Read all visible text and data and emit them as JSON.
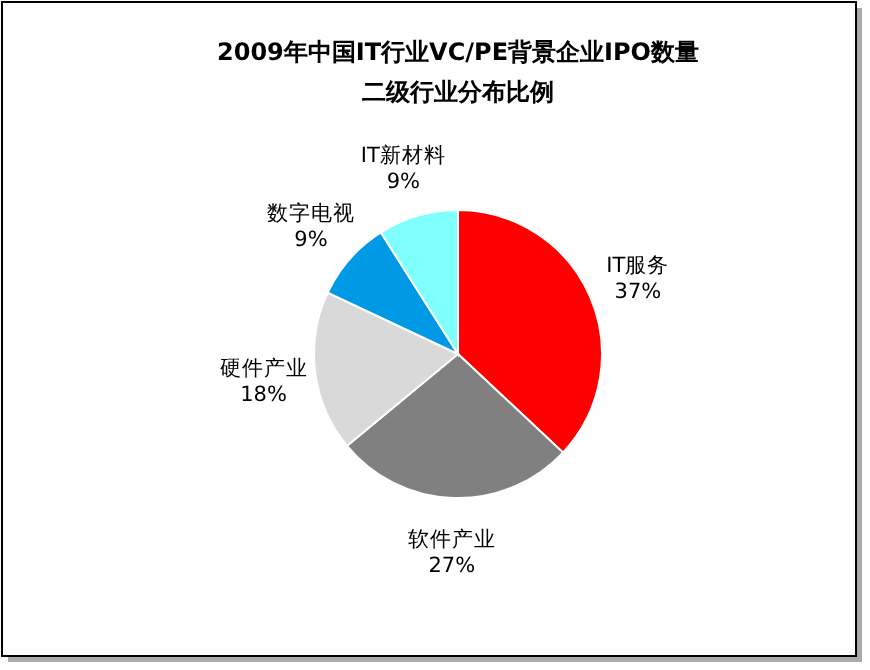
{
  "chart_data": {
    "type": "pie",
    "title": "2009年中国IT行业VC/PE背景企业IPO数量",
    "subtitle": "二级行业分布比例",
    "categories": [
      "IT服务",
      "软件产业",
      "硬件产业",
      "数字电视",
      "IT新材料"
    ],
    "values": [
      37,
      27,
      18,
      9,
      9
    ],
    "value_labels": [
      "37%",
      "27%",
      "18%",
      "9%",
      "9%"
    ],
    "colors": [
      "#ff0000",
      "#808080",
      "#d9d9d9",
      "#0099e6",
      "#80ffff"
    ]
  }
}
